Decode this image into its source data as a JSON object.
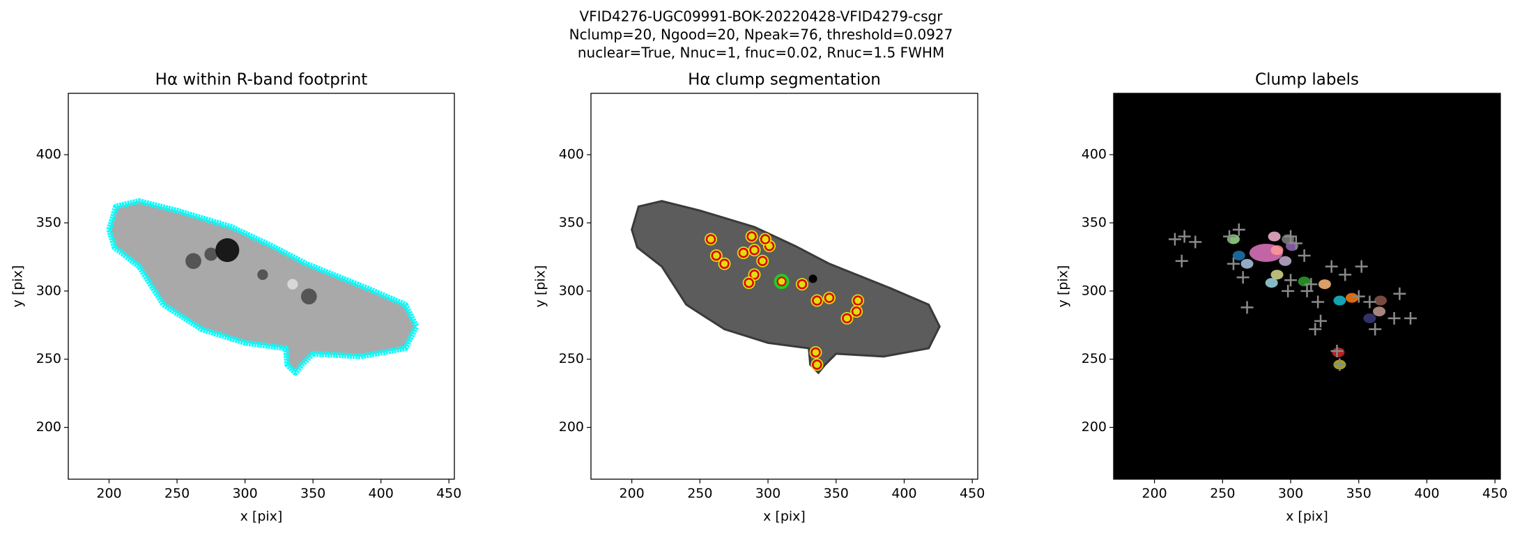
{
  "suptitle": [
    "VFID4276-UGC09991-BOK-20220428-VFID4279-csgr",
    "Nclump=20, Ngood=20, Npeak=76, threshold=0.0927",
    "nuclear=True, Nnuc=1, fnuc=0.02, Rnuc=1.5 FWHM"
  ],
  "chart_data": [
    {
      "type": "image",
      "title": "Hα within R-band footprint",
      "xlabel": "x [pix]",
      "ylabel": "y [pix]",
      "xlim": [
        170,
        454
      ],
      "ylim": [
        162,
        445
      ],
      "xticks": [
        200,
        250,
        300,
        350,
        400,
        450
      ],
      "yticks": [
        200,
        250,
        300,
        350,
        400
      ]
    },
    {
      "type": "image",
      "title": "Hα clump segmentation",
      "xlabel": "x [pix]",
      "ylabel": "y [pix]",
      "xlim": [
        170,
        454
      ],
      "ylim": [
        162,
        445
      ],
      "xticks": [
        200,
        250,
        300,
        350,
        400,
        450
      ],
      "yticks": [
        200,
        250,
        300,
        350,
        400
      ]
    },
    {
      "type": "image",
      "title": "Clump labels",
      "xlabel": "x [pix]",
      "ylabel": "y [pix]",
      "xlim": [
        170,
        454
      ],
      "ylim": [
        162,
        445
      ],
      "xticks": [
        200,
        250,
        300,
        350,
        400,
        450
      ],
      "yticks": [
        200,
        250,
        300,
        350,
        400
      ]
    }
  ]
}
